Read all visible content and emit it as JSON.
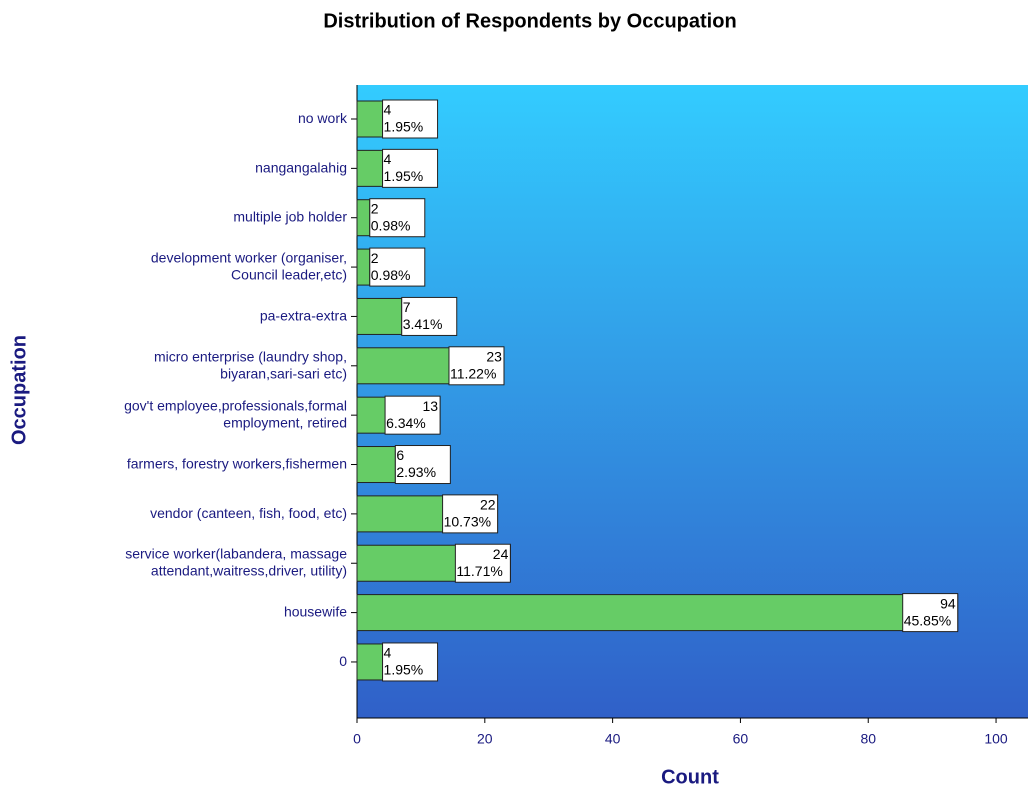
{
  "chart_data": {
    "type": "barh",
    "title": "Distribution of Respondents by Occupation",
    "x_label": "Count",
    "y_label": "Occupation",
    "categories": [
      "no work",
      "nangangalahig",
      "multiple job holder",
      "development worker (organiser,\nCouncil leader,etc)",
      "pa-extra-extra",
      "micro enterprise (laundry shop,\nbiyaran,sari-sari etc)",
      "gov't employee,professionals,formal\nemployment, retired",
      "farmers, forestry workers,fishermen",
      "vendor (canteen, fish, food, etc)",
      "service worker(labandera, massage\nattendant,waitress,driver, utility)",
      "housewife",
      "0"
    ],
    "values": [
      4,
      4,
      2,
      2,
      7,
      23,
      13,
      6,
      22,
      24,
      94,
      4
    ],
    "percent_labels": [
      "1.95%",
      "1.95%",
      "0.98%",
      "0.98%",
      "3.41%",
      "11.22%",
      "6.34%",
      "2.93%",
      "10.73%",
      "11.71%",
      "45.85%",
      "1.95%"
    ],
    "color": "#66cc66",
    "xlim": [
      0,
      105
    ],
    "xticks": [
      0,
      20,
      40,
      60,
      80,
      100
    ]
  }
}
